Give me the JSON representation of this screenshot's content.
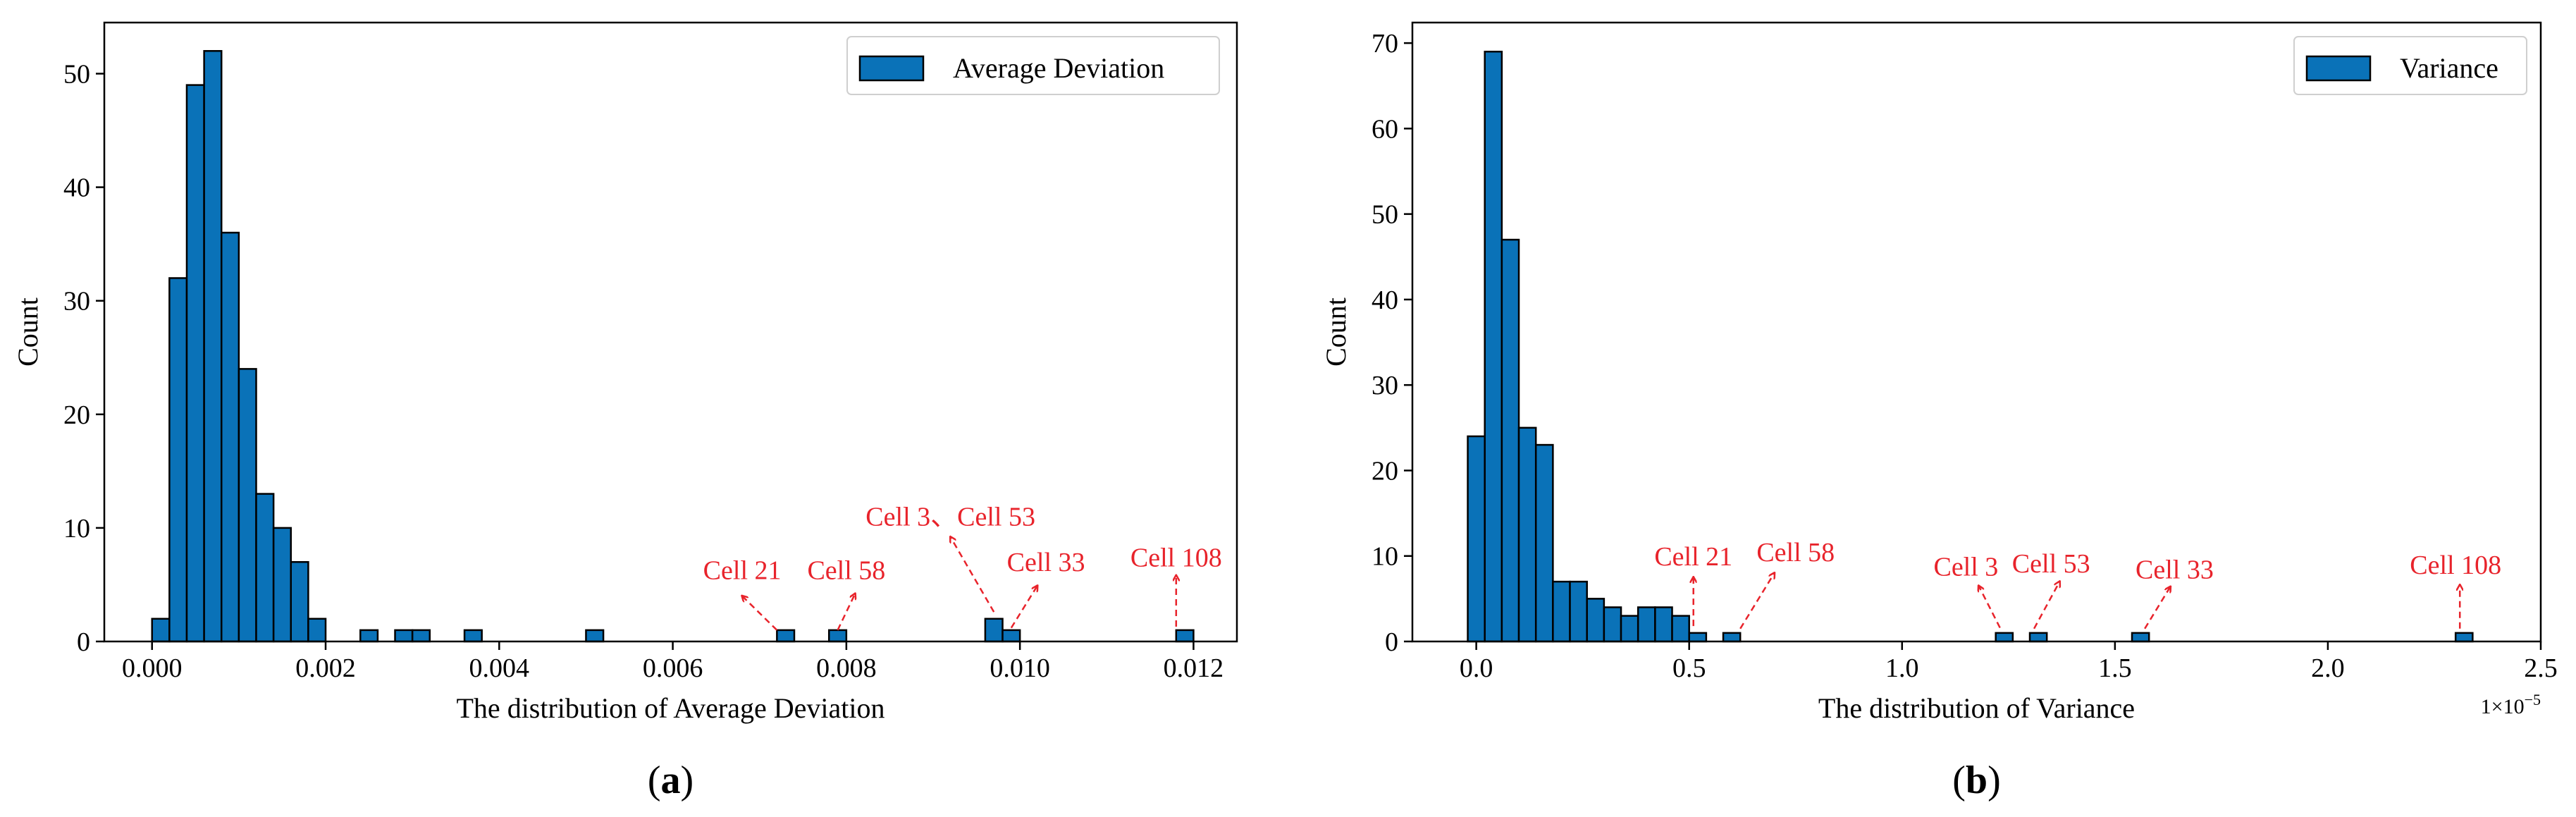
{
  "colors": {
    "bar_fill": "#0a72b8",
    "bar_edge": "#000000",
    "annotation": "#e8232b",
    "axis": "#000000",
    "background": "#ffffff"
  },
  "chart_data": [
    {
      "id": "a",
      "type": "bar",
      "subtype": "histogram",
      "panel_label": "(a)",
      "legend": "Average Deviation",
      "legend_position": "top-right",
      "xlabel": "The distribution of Average Deviation",
      "ylabel": "Count",
      "xlim": [
        -0.00055,
        0.0125
      ],
      "ylim": [
        0,
        54.5
      ],
      "xticks": [
        0.0,
        0.002,
        0.004,
        0.006,
        0.008,
        0.01,
        0.012
      ],
      "xtick_labels": [
        "0.000",
        "0.002",
        "0.004",
        "0.006",
        "0.008",
        "0.010",
        "0.012"
      ],
      "yticks": [
        0,
        10,
        20,
        30,
        40,
        50
      ],
      "ytick_labels": [
        "0",
        "10",
        "20",
        "30",
        "40",
        "50"
      ],
      "bin_width": 0.0002,
      "bin_starts": [
        0.0,
        0.0002,
        0.0004,
        0.0006,
        0.0008,
        0.001,
        0.0012,
        0.0014,
        0.0016,
        0.0018,
        0.0024,
        0.0028,
        0.003,
        0.0036,
        0.005,
        0.0072,
        0.0078,
        0.0096,
        0.0098,
        0.0118
      ],
      "counts": [
        2,
        32,
        49,
        52,
        36,
        24,
        13,
        10,
        7,
        2,
        1,
        1,
        1,
        1,
        1,
        1,
        1,
        2,
        1,
        1
      ],
      "annotations": [
        {
          "text": "Cell 21",
          "label_x": 0.0068,
          "label_y": 5.5,
          "arrow_from": [
            0.0072,
            1.0
          ],
          "arrow_to": [
            0.0068,
            4.0
          ]
        },
        {
          "text": "Cell 58",
          "label_x": 0.008,
          "label_y": 5.5,
          "arrow_from": [
            0.0079,
            1.0
          ],
          "arrow_to": [
            0.0081,
            4.2
          ]
        },
        {
          "text": "Cell 3、Cell 53",
          "label_x": 0.0092,
          "label_y": 10.2,
          "arrow_from": [
            0.0097,
            2.6
          ],
          "arrow_to": [
            0.0092,
            9.2
          ]
        },
        {
          "text": "Cell 33",
          "label_x": 0.0103,
          "label_y": 6.2,
          "arrow_from": [
            0.0099,
            1.2
          ],
          "arrow_to": [
            0.0102,
            4.9
          ]
        },
        {
          "text": "Cell 108",
          "label_x": 0.0118,
          "label_y": 6.6,
          "arrow_from": [
            0.0118,
            1.3
          ],
          "arrow_to": [
            0.0118,
            5.8
          ]
        }
      ]
    },
    {
      "id": "b",
      "type": "bar",
      "subtype": "histogram",
      "panel_label": "(b)",
      "legend": "Variance",
      "legend_position": "top-right",
      "xlabel": "The distribution of Variance",
      "ylabel": "Count",
      "offset_label": "1×10",
      "offset_exponent": "−5",
      "xlim": [
        -0.15,
        2.5
      ],
      "ylim": [
        0,
        72.4
      ],
      "xticks": [
        0.0,
        0.5,
        1.0,
        1.5,
        2.0,
        2.5
      ],
      "xtick_labels": [
        "0.0",
        "0.5",
        "1.0",
        "1.5",
        "2.0",
        "2.5"
      ],
      "yticks": [
        0,
        10,
        20,
        30,
        40,
        50,
        60,
        70
      ],
      "ytick_labels": [
        "0",
        "10",
        "20",
        "30",
        "40",
        "50",
        "60",
        "70"
      ],
      "bin_width": 0.04,
      "bin_starts": [
        -0.02,
        0.02,
        0.06,
        0.1,
        0.14,
        0.18,
        0.22,
        0.26,
        0.3,
        0.34,
        0.38,
        0.42,
        0.46,
        0.5,
        0.58,
        1.22,
        1.3,
        1.54,
        2.3
      ],
      "counts": [
        24,
        69,
        47,
        25,
        23,
        7,
        7,
        5,
        4,
        3,
        4,
        4,
        3,
        1,
        1,
        1,
        1,
        1,
        1
      ],
      "annotations": [
        {
          "text": "Cell 21",
          "label_x": 0.51,
          "label_y": 8.9,
          "arrow_from": [
            0.51,
            1.8
          ],
          "arrow_to": [
            0.51,
            7.5
          ]
        },
        {
          "text": "Cell 58",
          "label_x": 0.75,
          "label_y": 9.4,
          "arrow_from": [
            0.62,
            1.5
          ],
          "arrow_to": [
            0.7,
            8.0
          ]
        },
        {
          "text": "Cell 3",
          "label_x": 1.15,
          "label_y": 7.7,
          "arrow_from": [
            1.23,
            1.6
          ],
          "arrow_to": [
            1.18,
            6.5
          ]
        },
        {
          "text": "Cell 53",
          "label_x": 1.35,
          "label_y": 8.1,
          "arrow_from": [
            1.31,
            1.5
          ],
          "arrow_to": [
            1.37,
            7.0
          ]
        },
        {
          "text": "Cell 33",
          "label_x": 1.64,
          "label_y": 7.4,
          "arrow_from": [
            1.57,
            1.5
          ],
          "arrow_to": [
            1.63,
            6.4
          ]
        },
        {
          "text": "Cell 108",
          "label_x": 2.3,
          "label_y": 7.9,
          "arrow_from": [
            2.31,
            1.5
          ],
          "arrow_to": [
            2.31,
            6.6
          ]
        }
      ]
    }
  ]
}
